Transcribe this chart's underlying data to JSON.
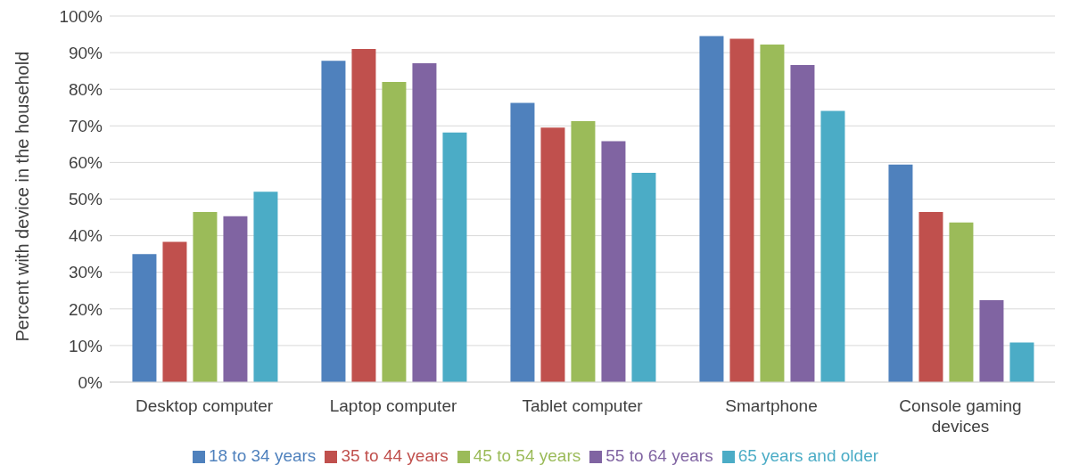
{
  "chart_data": {
    "type": "bar",
    "ylabel": "Percent with device in the household",
    "categories": [
      "Desktop computer",
      "Laptop computer",
      "Tablet computer",
      "Smartphone",
      "Console gaming devices"
    ],
    "series": [
      {
        "name": "18 to 34 years",
        "color": "#4f81bd",
        "values": [
          35,
          87.8,
          76.3,
          94.5,
          59.4
        ]
      },
      {
        "name": "35 to 44 years",
        "color": "#c0504d",
        "values": [
          38.3,
          91,
          69.5,
          93.8,
          46.5
        ]
      },
      {
        "name": "45 to 54 years",
        "color": "#9bbb59",
        "values": [
          46.5,
          82,
          71.3,
          92.2,
          43.6
        ]
      },
      {
        "name": "55 to 64 years",
        "color": "#8064a2",
        "values": [
          45.3,
          87.1,
          65.8,
          86.6,
          22.4
        ]
      },
      {
        "name": "65 years and older",
        "color": "#4bacc6",
        "values": [
          52,
          68.2,
          57.2,
          74.1,
          10.8
        ]
      }
    ],
    "ylim": [
      0,
      100
    ],
    "yticks": [
      {
        "value": 0,
        "label": "0%"
      },
      {
        "value": 10,
        "label": "10%"
      },
      {
        "value": 20,
        "label": "20%"
      },
      {
        "value": 30,
        "label": "30%"
      },
      {
        "value": 40,
        "label": "40%"
      },
      {
        "value": 50,
        "label": "50%"
      },
      {
        "value": 60,
        "label": "60%"
      },
      {
        "value": 70,
        "label": "70%"
      },
      {
        "value": 80,
        "label": "80%"
      },
      {
        "value": 90,
        "label": "90%"
      },
      {
        "value": 100,
        "label": "100%"
      }
    ],
    "grid": "y",
    "legend": "bottom"
  }
}
